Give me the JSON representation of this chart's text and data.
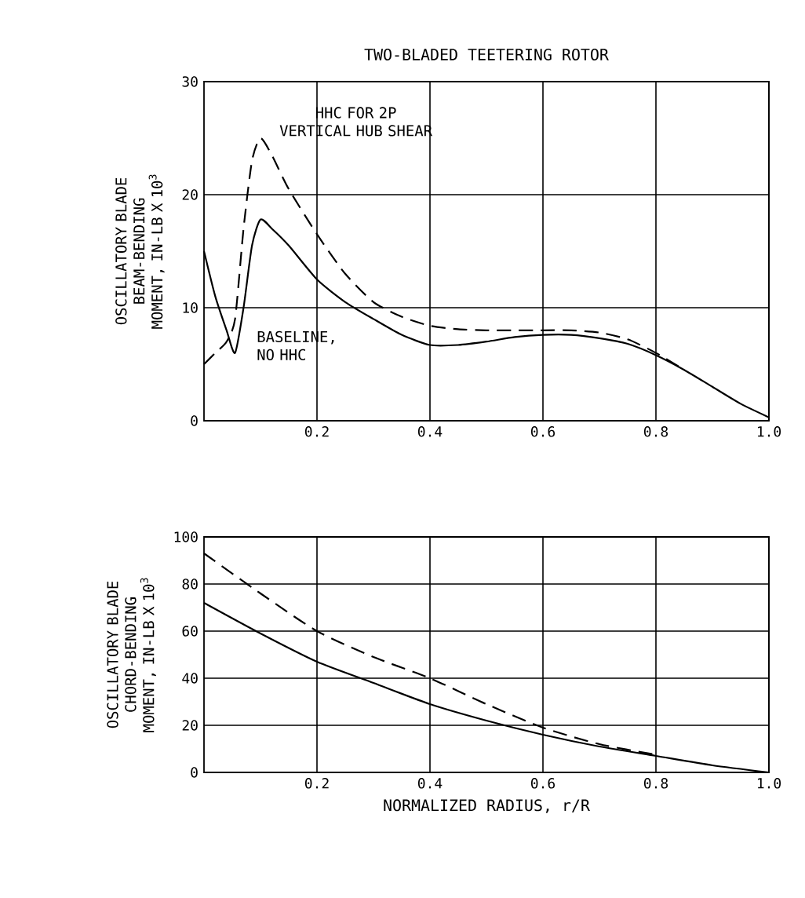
{
  "chart_data": [
    {
      "type": "line",
      "title": "TWO-BLADED TEETERING ROTOR",
      "ylabel": "OSCILLATORY BLADE BEAM-BENDING MOMENT, IN-LB X 10$^{3}$",
      "xlim": [
        0,
        1
      ],
      "ylim": [
        0,
        30
      ],
      "xticks": [
        0.2,
        0.4,
        0.6,
        0.8,
        {
          "value": 1,
          "label": "1.0"
        }
      ],
      "yticks": [
        0,
        10,
        20,
        30
      ],
      "grid": true,
      "series": [
        {
          "color": "#000000",
          "line_style": "solid",
          "x": [
            0,
            0.02,
            0.04,
            0.055,
            0.07,
            0.085,
            0.1,
            0.12,
            0.15,
            0.2,
            0.25,
            0.3,
            0.35,
            0.4,
            0.45,
            0.5,
            0.55,
            0.6,
            0.65,
            0.7,
            0.75,
            0.8,
            0.85,
            0.9,
            0.95,
            1.0
          ],
          "values": [
            15,
            11,
            8,
            6,
            10,
            15.5,
            17.8,
            17,
            15.5,
            12.5,
            10.5,
            9,
            7.6,
            6.7,
            6.7,
            7,
            7.4,
            7.6,
            7.6,
            7.3,
            6.8,
            5.8,
            4.5,
            3,
            1.5,
            0.3
          ]
        },
        {
          "color": "#000000",
          "line_style": "dashed",
          "x": [
            0,
            0.02,
            0.04,
            0.055,
            0.07,
            0.085,
            0.1,
            0.12,
            0.15,
            0.2,
            0.25,
            0.3,
            0.35,
            0.4,
            0.45,
            0.5,
            0.55,
            0.6,
            0.65,
            0.7,
            0.75,
            0.8,
            0.85
          ],
          "values": [
            5,
            6,
            7,
            9,
            17,
            23,
            25,
            23.5,
            20.5,
            16.5,
            13,
            10.5,
            9.2,
            8.4,
            8.1,
            8,
            8,
            8,
            8,
            7.8,
            7.2,
            6,
            4.5
          ]
        }
      ],
      "annotations": [
        {
          "text": "HHC FOR 2P VERTICAL HUB SHEAR",
          "x": 0.11,
          "y": 25
        },
        "BASELINE, NO HHC"
      ]
    },
    {
      "type": "line",
      "xlabel": "NORMALIZED RADIUS, r/R",
      "ylabel": "OSCILLATORY BLADE CHORD-BENDING MOMENT, IN-LB X 10$^{3}$",
      "xlim": [
        0,
        1
      ],
      "ylim": [
        0,
        100
      ],
      "xticks": [
        0.2,
        0.4,
        0.6,
        0.8,
        {
          "value": 1,
          "label": "1.0"
        }
      ],
      "yticks": [
        0,
        20,
        40,
        60,
        80,
        100
      ],
      "grid": true,
      "series": [
        {
          "color": "#000000",
          "line_style": "solid",
          "x": [
            0,
            0.1,
            0.2,
            0.3,
            0.4,
            0.5,
            0.6,
            0.7,
            0.8,
            0.9,
            1.0
          ],
          "values": [
            72,
            59,
            47,
            38,
            29,
            22,
            16,
            11,
            7,
            3,
            0
          ]
        },
        {
          "color": "#000000",
          "line_style": "dashed",
          "x": [
            0,
            0.1,
            0.2,
            0.3,
            0.4,
            0.5,
            0.6,
            0.7,
            0.8
          ],
          "values": [
            93,
            76,
            60,
            49,
            40,
            29,
            19,
            12,
            7.5
          ]
        }
      ]
    }
  ]
}
